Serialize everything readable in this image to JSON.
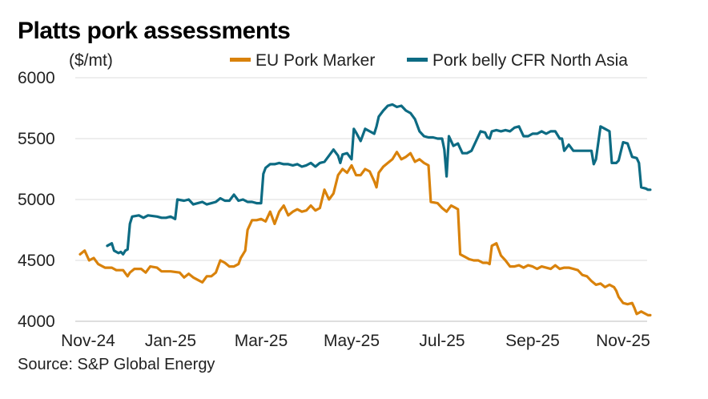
{
  "chart_data": {
    "type": "line",
    "title": "Platts pork assessments",
    "ylabel": "($/mt)",
    "source": "Source: S&P Global Energy",
    "x_ticks": [
      "Nov-24",
      "Jan-25",
      "Mar-25",
      "May-25",
      "Jul-25",
      "Sep-25",
      "Nov-25"
    ],
    "y_ticks": [
      4000,
      4500,
      5000,
      5500,
      6000
    ],
    "ylim": [
      4000,
      6000
    ],
    "xlim_months": [
      0,
      12.6
    ],
    "grid": true,
    "legend_position": "top-right",
    "series": [
      {
        "name": "EU Pork Marker",
        "color": "#D9820B",
        "points": [
          [
            0.0,
            4550
          ],
          [
            0.1,
            4580
          ],
          [
            0.2,
            4500
          ],
          [
            0.3,
            4520
          ],
          [
            0.4,
            4470
          ],
          [
            0.55,
            4440
          ],
          [
            0.7,
            4440
          ],
          [
            0.8,
            4420
          ],
          [
            0.95,
            4420
          ],
          [
            1.05,
            4370
          ],
          [
            1.1,
            4400
          ],
          [
            1.2,
            4430
          ],
          [
            1.35,
            4430
          ],
          [
            1.45,
            4400
          ],
          [
            1.55,
            4450
          ],
          [
            1.7,
            4440
          ],
          [
            1.8,
            4410
          ],
          [
            2.0,
            4410
          ],
          [
            2.2,
            4400
          ],
          [
            2.3,
            4360
          ],
          [
            2.4,
            4390
          ],
          [
            2.5,
            4360
          ],
          [
            2.6,
            4340
          ],
          [
            2.7,
            4320
          ],
          [
            2.8,
            4370
          ],
          [
            2.9,
            4370
          ],
          [
            3.0,
            4400
          ],
          [
            3.05,
            4450
          ],
          [
            3.1,
            4500
          ],
          [
            3.2,
            4480
          ],
          [
            3.3,
            4450
          ],
          [
            3.4,
            4450
          ],
          [
            3.5,
            4470
          ],
          [
            3.55,
            4520
          ],
          [
            3.6,
            4550
          ],
          [
            3.65,
            4580
          ],
          [
            3.7,
            4750
          ],
          [
            3.8,
            4830
          ],
          [
            3.9,
            4830
          ],
          [
            4.0,
            4840
          ],
          [
            4.1,
            4820
          ],
          [
            4.2,
            4900
          ],
          [
            4.3,
            4800
          ],
          [
            4.4,
            4900
          ],
          [
            4.5,
            4950
          ],
          [
            4.6,
            4870
          ],
          [
            4.7,
            4900
          ],
          [
            4.8,
            4920
          ],
          [
            4.9,
            4900
          ],
          [
            5.0,
            4910
          ],
          [
            5.1,
            4950
          ],
          [
            5.2,
            4910
          ],
          [
            5.3,
            4930
          ],
          [
            5.4,
            5080
          ],
          [
            5.5,
            5000
          ],
          [
            5.6,
            5050
          ],
          [
            5.7,
            5200
          ],
          [
            5.8,
            5250
          ],
          [
            5.9,
            5220
          ],
          [
            6.0,
            5280
          ],
          [
            6.1,
            5200
          ],
          [
            6.2,
            5200
          ],
          [
            6.3,
            5250
          ],
          [
            6.4,
            5230
          ],
          [
            6.5,
            5150
          ],
          [
            6.55,
            5100
          ],
          [
            6.6,
            5220
          ],
          [
            6.7,
            5270
          ],
          [
            6.8,
            5300
          ],
          [
            6.9,
            5330
          ],
          [
            7.0,
            5390
          ],
          [
            7.1,
            5330
          ],
          [
            7.2,
            5350
          ],
          [
            7.3,
            5380
          ],
          [
            7.4,
            5310
          ],
          [
            7.5,
            5330
          ],
          [
            7.6,
            5300
          ],
          [
            7.7,
            5280
          ],
          [
            7.75,
            4980
          ],
          [
            7.9,
            4970
          ],
          [
            8.0,
            4930
          ],
          [
            8.1,
            4900
          ],
          [
            8.2,
            4950
          ],
          [
            8.3,
            4930
          ],
          [
            8.35,
            4920
          ],
          [
            8.4,
            4550
          ],
          [
            8.5,
            4530
          ],
          [
            8.6,
            4510
          ],
          [
            8.7,
            4500
          ],
          [
            8.8,
            4500
          ],
          [
            8.9,
            4480
          ],
          [
            9.0,
            4480
          ],
          [
            9.05,
            4470
          ],
          [
            9.1,
            4620
          ],
          [
            9.2,
            4640
          ],
          [
            9.3,
            4540
          ],
          [
            9.4,
            4500
          ],
          [
            9.5,
            4450
          ],
          [
            9.6,
            4450
          ],
          [
            9.7,
            4460
          ],
          [
            9.8,
            4440
          ],
          [
            9.9,
            4460
          ],
          [
            10.0,
            4450
          ],
          [
            10.1,
            4430
          ],
          [
            10.2,
            4450
          ],
          [
            10.3,
            4440
          ],
          [
            10.4,
            4430
          ],
          [
            10.5,
            4460
          ],
          [
            10.6,
            4430
          ],
          [
            10.7,
            4440
          ],
          [
            10.8,
            4440
          ],
          [
            10.9,
            4430
          ],
          [
            11.0,
            4420
          ],
          [
            11.1,
            4380
          ],
          [
            11.2,
            4370
          ],
          [
            11.3,
            4330
          ],
          [
            11.4,
            4300
          ],
          [
            11.5,
            4310
          ],
          [
            11.6,
            4280
          ],
          [
            11.7,
            4300
          ],
          [
            11.8,
            4280
          ],
          [
            11.85,
            4250
          ],
          [
            11.9,
            4200
          ],
          [
            12.0,
            4150
          ],
          [
            12.1,
            4140
          ],
          [
            12.2,
            4150
          ],
          [
            12.25,
            4110
          ],
          [
            12.3,
            4060
          ],
          [
            12.4,
            4080
          ],
          [
            12.5,
            4060
          ],
          [
            12.55,
            4050
          ],
          [
            12.6,
            4050
          ]
        ]
      },
      {
        "name": "Pork belly CFR North Asia",
        "color": "#0D6B83",
        "points": [
          [
            0.6,
            4620
          ],
          [
            0.7,
            4640
          ],
          [
            0.75,
            4580
          ],
          [
            0.85,
            4560
          ],
          [
            0.9,
            4570
          ],
          [
            0.95,
            4550
          ],
          [
            1.0,
            4580
          ],
          [
            1.05,
            4590
          ],
          [
            1.1,
            4800
          ],
          [
            1.15,
            4860
          ],
          [
            1.3,
            4870
          ],
          [
            1.4,
            4850
          ],
          [
            1.5,
            4870
          ],
          [
            1.7,
            4860
          ],
          [
            1.8,
            4850
          ],
          [
            1.9,
            4850
          ],
          [
            2.0,
            4860
          ],
          [
            2.1,
            4840
          ],
          [
            2.15,
            5000
          ],
          [
            2.3,
            4990
          ],
          [
            2.4,
            5000
          ],
          [
            2.5,
            4960
          ],
          [
            2.6,
            4970
          ],
          [
            2.7,
            4980
          ],
          [
            2.8,
            4960
          ],
          [
            2.9,
            4970
          ],
          [
            3.0,
            4980
          ],
          [
            3.1,
            5010
          ],
          [
            3.2,
            4990
          ],
          [
            3.3,
            4990
          ],
          [
            3.4,
            5040
          ],
          [
            3.5,
            4990
          ],
          [
            3.6,
            5000
          ],
          [
            3.7,
            4980
          ],
          [
            3.8,
            4980
          ],
          [
            3.9,
            4970
          ],
          [
            4.0,
            4970
          ],
          [
            4.05,
            5210
          ],
          [
            4.1,
            5260
          ],
          [
            4.2,
            5290
          ],
          [
            4.3,
            5290
          ],
          [
            4.4,
            5300
          ],
          [
            4.5,
            5290
          ],
          [
            4.6,
            5290
          ],
          [
            4.7,
            5280
          ],
          [
            4.8,
            5290
          ],
          [
            4.9,
            5270
          ],
          [
            5.0,
            5280
          ],
          [
            5.1,
            5300
          ],
          [
            5.2,
            5270
          ],
          [
            5.3,
            5300
          ],
          [
            5.4,
            5310
          ],
          [
            5.5,
            5360
          ],
          [
            5.6,
            5410
          ],
          [
            5.7,
            5360
          ],
          [
            5.75,
            5300
          ],
          [
            5.8,
            5370
          ],
          [
            5.9,
            5380
          ],
          [
            6.0,
            5330
          ],
          [
            6.05,
            5580
          ],
          [
            6.1,
            5550
          ],
          [
            6.2,
            5480
          ],
          [
            6.3,
            5580
          ],
          [
            6.4,
            5560
          ],
          [
            6.5,
            5540
          ],
          [
            6.55,
            5600
          ],
          [
            6.6,
            5680
          ],
          [
            6.7,
            5730
          ],
          [
            6.8,
            5770
          ],
          [
            6.9,
            5780
          ],
          [
            7.0,
            5760
          ],
          [
            7.1,
            5770
          ],
          [
            7.2,
            5730
          ],
          [
            7.3,
            5710
          ],
          [
            7.4,
            5660
          ],
          [
            7.5,
            5560
          ],
          [
            7.6,
            5520
          ],
          [
            7.7,
            5510
          ],
          [
            7.8,
            5510
          ],
          [
            7.9,
            5500
          ],
          [
            8.0,
            5500
          ],
          [
            8.05,
            5410
          ],
          [
            8.1,
            5190
          ],
          [
            8.15,
            5520
          ],
          [
            8.25,
            5440
          ],
          [
            8.35,
            5460
          ],
          [
            8.4,
            5420
          ],
          [
            8.45,
            5380
          ],
          [
            8.55,
            5380
          ],
          [
            8.65,
            5400
          ],
          [
            8.75,
            5480
          ],
          [
            8.85,
            5560
          ],
          [
            8.95,
            5550
          ],
          [
            9.0,
            5510
          ],
          [
            9.05,
            5500
          ],
          [
            9.1,
            5560
          ],
          [
            9.2,
            5570
          ],
          [
            9.3,
            5560
          ],
          [
            9.4,
            5570
          ],
          [
            9.5,
            5560
          ],
          [
            9.6,
            5590
          ],
          [
            9.7,
            5600
          ],
          [
            9.8,
            5520
          ],
          [
            9.9,
            5520
          ],
          [
            10.0,
            5540
          ],
          [
            10.1,
            5540
          ],
          [
            10.2,
            5560
          ],
          [
            10.3,
            5540
          ],
          [
            10.4,
            5560
          ],
          [
            10.5,
            5560
          ],
          [
            10.6,
            5500
          ],
          [
            10.65,
            5500
          ],
          [
            10.7,
            5400
          ],
          [
            10.8,
            5450
          ],
          [
            10.9,
            5400
          ],
          [
            11.0,
            5400
          ],
          [
            11.1,
            5400
          ],
          [
            11.2,
            5400
          ],
          [
            11.3,
            5400
          ],
          [
            11.35,
            5290
          ],
          [
            11.4,
            5330
          ],
          [
            11.5,
            5600
          ],
          [
            11.6,
            5580
          ],
          [
            11.7,
            5560
          ],
          [
            11.75,
            5300
          ],
          [
            11.85,
            5300
          ],
          [
            11.9,
            5320
          ],
          [
            12.0,
            5470
          ],
          [
            12.1,
            5460
          ],
          [
            12.2,
            5350
          ],
          [
            12.3,
            5340
          ],
          [
            12.35,
            5300
          ],
          [
            12.4,
            5100
          ],
          [
            12.5,
            5090
          ],
          [
            12.55,
            5080
          ],
          [
            12.6,
            5080
          ]
        ]
      }
    ]
  }
}
